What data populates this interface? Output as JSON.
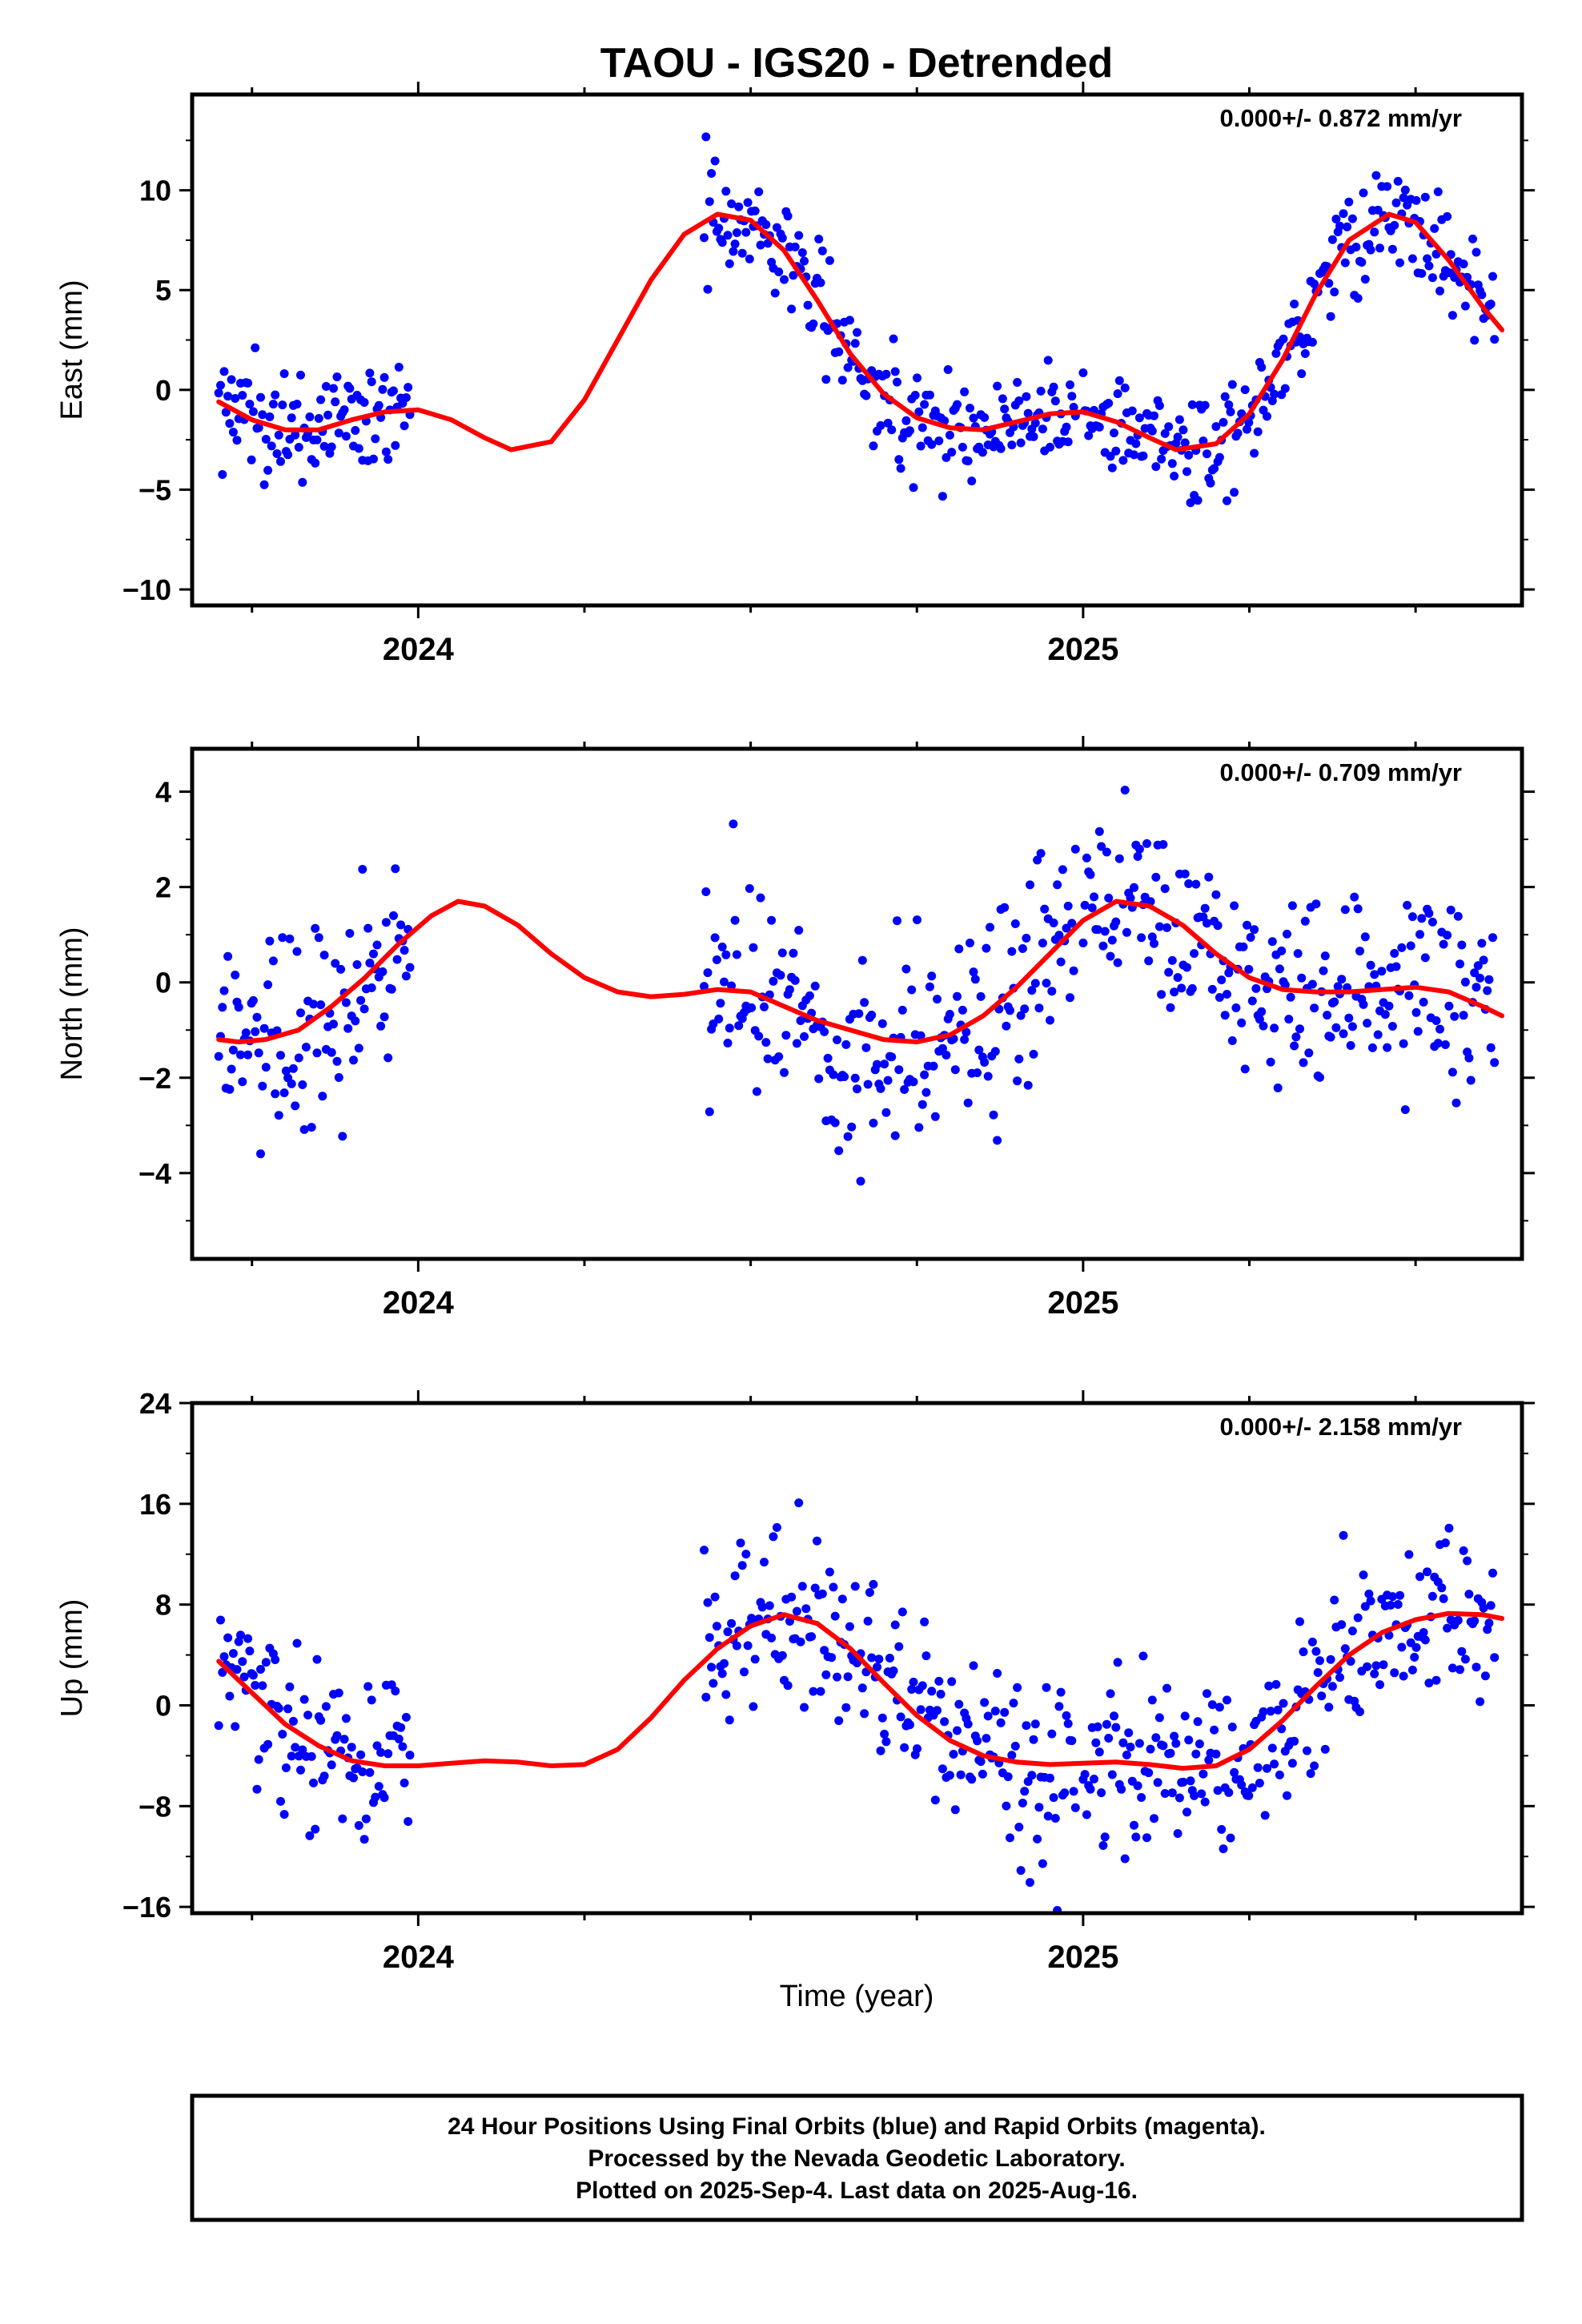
{
  "chart_data": {
    "title": "TAOU - IGS20 - Detrended",
    "xlabel": "Time (year)",
    "xlim": [
      2023.66,
      2025.66
    ],
    "x_ticks": [
      2024,
      2025
    ],
    "panels": [
      {
        "ylabel": "East (mm)",
        "rate_text": "0.000+/- 0.872 mm/yr",
        "ylim": [
          -10.8,
          14.8
        ],
        "y_ticks": [
          -10,
          -5,
          0,
          5,
          10
        ],
        "segments": [
          [
            2023.7,
            2023.99
          ],
          [
            2024.43,
            2024.99
          ],
          [
            2025.0,
            2025.62
          ]
        ],
        "fit": [
          [
            2023.7,
            -0.6
          ],
          [
            2023.75,
            -1.5
          ],
          [
            2023.8,
            -2.0
          ],
          [
            2023.85,
            -2.0
          ],
          [
            2023.9,
            -1.5
          ],
          [
            2023.95,
            -1.1
          ],
          [
            2024.0,
            -1.0
          ],
          [
            2024.05,
            -1.5
          ],
          [
            2024.1,
            -2.4
          ],
          [
            2024.14,
            -3.0
          ],
          [
            2024.2,
            -2.6
          ],
          [
            2024.25,
            -0.5
          ],
          [
            2024.3,
            2.5
          ],
          [
            2024.35,
            5.5
          ],
          [
            2024.4,
            7.8
          ],
          [
            2024.45,
            8.8
          ],
          [
            2024.5,
            8.5
          ],
          [
            2024.55,
            7.0
          ],
          [
            2024.6,
            4.5
          ],
          [
            2024.65,
            1.8
          ],
          [
            2024.7,
            -0.2
          ],
          [
            2024.75,
            -1.4
          ],
          [
            2024.8,
            -1.9
          ],
          [
            2024.85,
            -2.0
          ],
          [
            2024.9,
            -1.6
          ],
          [
            2024.95,
            -1.2
          ],
          [
            2025.0,
            -1.1
          ],
          [
            2025.05,
            -1.6
          ],
          [
            2025.1,
            -2.4
          ],
          [
            2025.14,
            -3.0
          ],
          [
            2025.2,
            -2.7
          ],
          [
            2025.25,
            -1.2
          ],
          [
            2025.3,
            1.5
          ],
          [
            2025.35,
            4.8
          ],
          [
            2025.4,
            7.5
          ],
          [
            2025.46,
            8.8
          ],
          [
            2025.5,
            8.4
          ],
          [
            2025.55,
            6.5
          ],
          [
            2025.6,
            4.2
          ],
          [
            2025.63,
            3.0
          ]
        ]
      },
      {
        "ylabel": "North (mm)",
        "rate_text": "0.000+/- 0.709 mm/yr",
        "ylim": [
          -5.8,
          4.9
        ],
        "y_ticks": [
          -4,
          -2,
          0,
          2,
          4
        ],
        "segments": [
          [
            2023.7,
            2023.99
          ],
          [
            2024.43,
            2024.99
          ],
          [
            2025.0,
            2025.62
          ]
        ],
        "fit": [
          [
            2023.7,
            -1.2
          ],
          [
            2023.73,
            -1.25
          ],
          [
            2023.77,
            -1.2
          ],
          [
            2023.82,
            -1.0
          ],
          [
            2023.87,
            -0.5
          ],
          [
            2023.92,
            0.1
          ],
          [
            2023.97,
            0.8
          ],
          [
            2024.02,
            1.4
          ],
          [
            2024.06,
            1.7
          ],
          [
            2024.1,
            1.6
          ],
          [
            2024.15,
            1.2
          ],
          [
            2024.2,
            0.6
          ],
          [
            2024.25,
            0.1
          ],
          [
            2024.3,
            -0.2
          ],
          [
            2024.35,
            -0.3
          ],
          [
            2024.4,
            -0.25
          ],
          [
            2024.45,
            -0.15
          ],
          [
            2024.5,
            -0.2
          ],
          [
            2024.55,
            -0.5
          ],
          [
            2024.6,
            -0.8
          ],
          [
            2024.65,
            -1.0
          ],
          [
            2024.7,
            -1.2
          ],
          [
            2024.75,
            -1.25
          ],
          [
            2024.8,
            -1.1
          ],
          [
            2024.85,
            -0.7
          ],
          [
            2024.9,
            -0.1
          ],
          [
            2024.95,
            0.6
          ],
          [
            2025.0,
            1.3
          ],
          [
            2025.05,
            1.7
          ],
          [
            2025.1,
            1.6
          ],
          [
            2025.15,
            1.2
          ],
          [
            2025.2,
            0.6
          ],
          [
            2025.25,
            0.1
          ],
          [
            2025.3,
            -0.15
          ],
          [
            2025.35,
            -0.2
          ],
          [
            2025.4,
            -0.2
          ],
          [
            2025.45,
            -0.15
          ],
          [
            2025.5,
            -0.1
          ],
          [
            2025.55,
            -0.2
          ],
          [
            2025.6,
            -0.5
          ],
          [
            2025.63,
            -0.7
          ]
        ]
      },
      {
        "ylabel": "Up (mm)",
        "rate_text": "0.000+/- 2.158 mm/yr",
        "ylim": [
          -16.5,
          24
        ],
        "y_ticks": [
          -16,
          -8,
          0,
          8,
          16,
          24
        ],
        "segments": [
          [
            2023.7,
            2023.99
          ],
          [
            2024.43,
            2024.99
          ],
          [
            2025.0,
            2025.62
          ]
        ],
        "fit": [
          [
            2023.7,
            3.5
          ],
          [
            2023.75,
            1.0
          ],
          [
            2023.8,
            -1.5
          ],
          [
            2023.85,
            -3.2
          ],
          [
            2023.9,
            -4.4
          ],
          [
            2023.95,
            -4.8
          ],
          [
            2024.0,
            -4.8
          ],
          [
            2024.05,
            -4.6
          ],
          [
            2024.1,
            -4.4
          ],
          [
            2024.15,
            -4.5
          ],
          [
            2024.2,
            -4.8
          ],
          [
            2024.25,
            -4.7
          ],
          [
            2024.3,
            -3.5
          ],
          [
            2024.35,
            -1.0
          ],
          [
            2024.4,
            2.0
          ],
          [
            2024.45,
            4.5
          ],
          [
            2024.5,
            6.3
          ],
          [
            2024.55,
            7.2
          ],
          [
            2024.6,
            6.5
          ],
          [
            2024.65,
            4.5
          ],
          [
            2024.7,
            1.8
          ],
          [
            2024.75,
            -0.8
          ],
          [
            2024.8,
            -2.8
          ],
          [
            2024.85,
            -4.0
          ],
          [
            2024.9,
            -4.5
          ],
          [
            2024.95,
            -4.7
          ],
          [
            2025.0,
            -4.6
          ],
          [
            2025.05,
            -4.5
          ],
          [
            2025.1,
            -4.7
          ],
          [
            2025.15,
            -5.0
          ],
          [
            2025.2,
            -4.8
          ],
          [
            2025.25,
            -3.5
          ],
          [
            2025.3,
            -1.2
          ],
          [
            2025.35,
            1.5
          ],
          [
            2025.4,
            4.0
          ],
          [
            2025.45,
            5.8
          ],
          [
            2025.5,
            6.8
          ],
          [
            2025.55,
            7.3
          ],
          [
            2025.6,
            7.2
          ],
          [
            2025.63,
            6.9
          ]
        ]
      }
    ],
    "colors": {
      "points": "#0000ff",
      "fit": "#ff0000",
      "frame": "#000000"
    }
  },
  "footer": {
    "line1": "24 Hour Positions Using Final Orbits (blue) and Rapid Orbits (magenta).",
    "line2": "Processed by the Nevada Geodetic Laboratory.",
    "line3": "Plotted on 2025-Sep-4. Last data on 2025-Aug-16."
  }
}
